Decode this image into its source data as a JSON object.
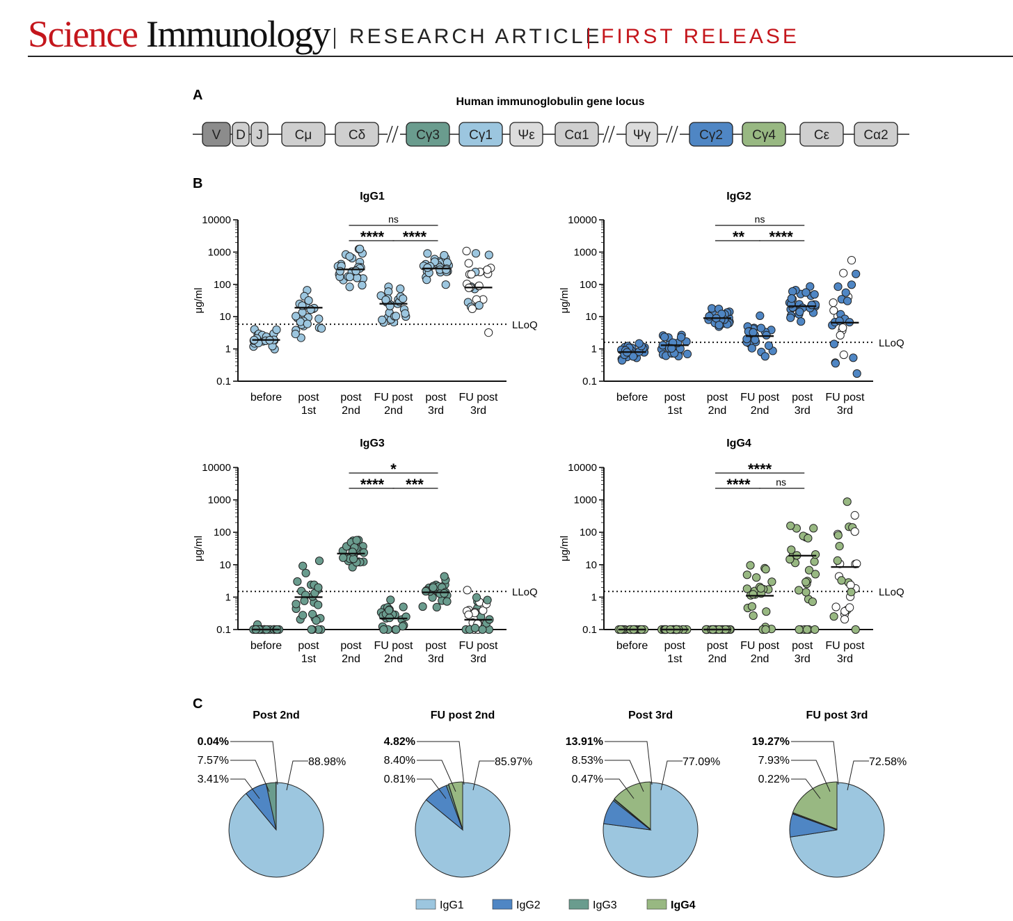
{
  "header": {
    "journal_part1": "Science",
    "journal_part2": "Immunology",
    "section": "RESEARCH ARTICLE",
    "release": "FIRST RELEASE"
  },
  "panel_a": {
    "letter": "A",
    "title": "Human immunoglobulin gene locus",
    "genes": [
      {
        "label": "V",
        "color": "#8c8c8c"
      },
      {
        "label": "D",
        "color": "#cfcfcf"
      },
      {
        "label": "J",
        "color": "#cfcfcf"
      },
      {
        "label": "Cμ",
        "color": "#cfcfcf"
      },
      {
        "label": "Cδ",
        "color": "#cfcfcf"
      },
      {
        "label": "Cγ3",
        "color": "#6a9c8e"
      },
      {
        "label": "Cγ1",
        "color": "#9cc6df"
      },
      {
        "label": "Ψε",
        "color": "#dcdcdc"
      },
      {
        "label": "Cα1",
        "color": "#cfcfcf"
      },
      {
        "label": "Ψγ",
        "color": "#dcdcdc"
      },
      {
        "label": "Cγ2",
        "color": "#4f86c4"
      },
      {
        "label": "Cγ4",
        "color": "#98b882"
      },
      {
        "label": "Cε",
        "color": "#cfcfcf"
      },
      {
        "label": "Cα2",
        "color": "#cfcfcf"
      }
    ]
  },
  "panel_b": {
    "letter": "B"
  },
  "panel_c": {
    "letter": "C"
  },
  "chart_data": [
    {
      "type": "scatter",
      "title": "IgG1",
      "ylabel": "μg/ml",
      "yscale": "log",
      "ylim": [
        0.1,
        10000
      ],
      "yticks": [
        "0.1",
        "1",
        "10",
        "100",
        "1000",
        "10000"
      ],
      "categories": [
        "before",
        "post 1st",
        "post 2nd",
        "FU post 2nd",
        "post 3rd",
        "FU post 3rd"
      ],
      "category_lines": [
        [
          "before",
          ""
        ],
        [
          "post",
          "1st"
        ],
        [
          "post",
          "2nd"
        ],
        [
          "FU post",
          "2nd"
        ],
        [
          "post",
          "3rd"
        ],
        [
          "FU post",
          "3rd"
        ]
      ],
      "medians": [
        1.9,
        19,
        290,
        25,
        310,
        80
      ],
      "lloq": 5.8,
      "lloq_label": "LLoQ",
      "color": "#9cc6df",
      "fu3_open": true,
      "significance": [
        {
          "from": 2,
          "to": 4,
          "label": "ns",
          "level": 2
        },
        {
          "from": 2,
          "to": 3,
          "label": "****",
          "level": 1
        },
        {
          "from": 3,
          "to": 4,
          "label": "****",
          "level": 1
        }
      ]
    },
    {
      "type": "scatter",
      "title": "IgG2",
      "ylabel": "μg/ml",
      "yscale": "log",
      "ylim": [
        0.1,
        10000
      ],
      "yticks": [
        "0.1",
        "1",
        "10",
        "100",
        "1000",
        "10000"
      ],
      "categories": [
        "before",
        "post 1st",
        "post 2nd",
        "FU post 2nd",
        "post 3rd",
        "FU post 3rd"
      ],
      "category_lines": [
        [
          "before",
          ""
        ],
        [
          "post",
          "1st"
        ],
        [
          "post",
          "2nd"
        ],
        [
          "FU post",
          "2nd"
        ],
        [
          "post",
          "3rd"
        ],
        [
          "FU post",
          "3rd"
        ]
      ],
      "medians": [
        0.8,
        1.3,
        9,
        2.5,
        21,
        6.5
      ],
      "lloq": 1.6,
      "lloq_label": "LLoQ",
      "color": "#4f86c4",
      "fu3_open": true,
      "significance": [
        {
          "from": 2,
          "to": 4,
          "label": "ns",
          "level": 2
        },
        {
          "from": 2,
          "to": 3,
          "label": "**",
          "level": 1
        },
        {
          "from": 3,
          "to": 4,
          "label": "****",
          "level": 1
        }
      ]
    },
    {
      "type": "scatter",
      "title": "IgG3",
      "ylabel": "μg/ml",
      "yscale": "log",
      "ylim": [
        0.1,
        10000
      ],
      "yticks": [
        "0.1",
        "1",
        "10",
        "100",
        "1000",
        "10000"
      ],
      "categories": [
        "before",
        "post 1st",
        "post 2nd",
        "FU post 2nd",
        "post 3rd",
        "FU post 3rd"
      ],
      "category_lines": [
        [
          "before",
          ""
        ],
        [
          "post",
          "1st"
        ],
        [
          "post",
          "2nd"
        ],
        [
          "FU post",
          "2nd"
        ],
        [
          "post",
          "3rd"
        ],
        [
          "FU post",
          "3rd"
        ]
      ],
      "medians": [
        0.1,
        1.0,
        22,
        0.22,
        1.4,
        0.2
      ],
      "lloq": 1.5,
      "lloq_label": "LLoQ",
      "color": "#6a9c8e",
      "fu3_open": true,
      "significance": [
        {
          "from": 2,
          "to": 4,
          "label": "*",
          "level": 2
        },
        {
          "from": 2,
          "to": 3,
          "label": "****",
          "level": 1
        },
        {
          "from": 3,
          "to": 4,
          "label": "***",
          "level": 1
        }
      ]
    },
    {
      "type": "scatter",
      "title": "IgG4",
      "ylabel": "μg/ml",
      "yscale": "log",
      "ylim": [
        0.1,
        10000
      ],
      "yticks": [
        "0.1",
        "1",
        "10",
        "100",
        "1000",
        "10000"
      ],
      "categories": [
        "before",
        "post 1st",
        "post 2nd",
        "FU post 2nd",
        "post 3rd",
        "FU post 3rd"
      ],
      "category_lines": [
        [
          "before",
          ""
        ],
        [
          "post",
          "1st"
        ],
        [
          "post",
          "2nd"
        ],
        [
          "FU post",
          "2nd"
        ],
        [
          "post",
          "3rd"
        ],
        [
          "FU post",
          "3rd"
        ]
      ],
      "medians": [
        0.1,
        0.1,
        0.1,
        1.1,
        19,
        8.5
      ],
      "lloq": 1.5,
      "lloq_label": "LLoQ",
      "color": "#98b882",
      "fu3_open": true,
      "significance": [
        {
          "from": 2,
          "to": 4,
          "label": "****",
          "level": 2
        },
        {
          "from": 2,
          "to": 3,
          "label": "****",
          "level": 1
        },
        {
          "from": 3,
          "to": 4,
          "label": "ns",
          "level": 1
        }
      ]
    },
    {
      "type": "pie",
      "title": "Post  2nd",
      "labels": [
        "IgG1",
        "IgG2",
        "IgG3",
        "IgG4"
      ],
      "values": [
        88.98,
        7.57,
        3.41,
        0.04
      ],
      "value_labels": [
        "88.98%",
        "7.57%",
        "3.41%",
        "0.04%"
      ]
    },
    {
      "type": "pie",
      "title": "FU post 2nd",
      "labels": [
        "IgG1",
        "IgG2",
        "IgG3",
        "IgG4"
      ],
      "values": [
        85.97,
        8.4,
        0.81,
        4.82
      ],
      "value_labels": [
        "85.97%",
        "8.40%",
        "0.81%",
        "4.82%"
      ]
    },
    {
      "type": "pie",
      "title": "Post 3rd",
      "labels": [
        "IgG1",
        "IgG2",
        "IgG3",
        "IgG4"
      ],
      "values": [
        77.09,
        8.53,
        0.47,
        13.91
      ],
      "value_labels": [
        "77.09%",
        "8.53%",
        "0.47%",
        "13.91%"
      ]
    },
    {
      "type": "pie",
      "title": "FU post 3rd",
      "labels": [
        "IgG1",
        "IgG2",
        "IgG3",
        "IgG4"
      ],
      "values": [
        72.58,
        7.93,
        0.22,
        19.27
      ],
      "value_labels": [
        "72.58%",
        "7.93%",
        "0.22%",
        "19.27%"
      ]
    }
  ],
  "legend": [
    {
      "label": "IgG1",
      "color": "#9cc6df"
    },
    {
      "label": "IgG2",
      "color": "#4f86c4"
    },
    {
      "label": "IgG3",
      "color": "#6a9c8e"
    },
    {
      "label": "IgG4",
      "color": "#98b882"
    }
  ]
}
